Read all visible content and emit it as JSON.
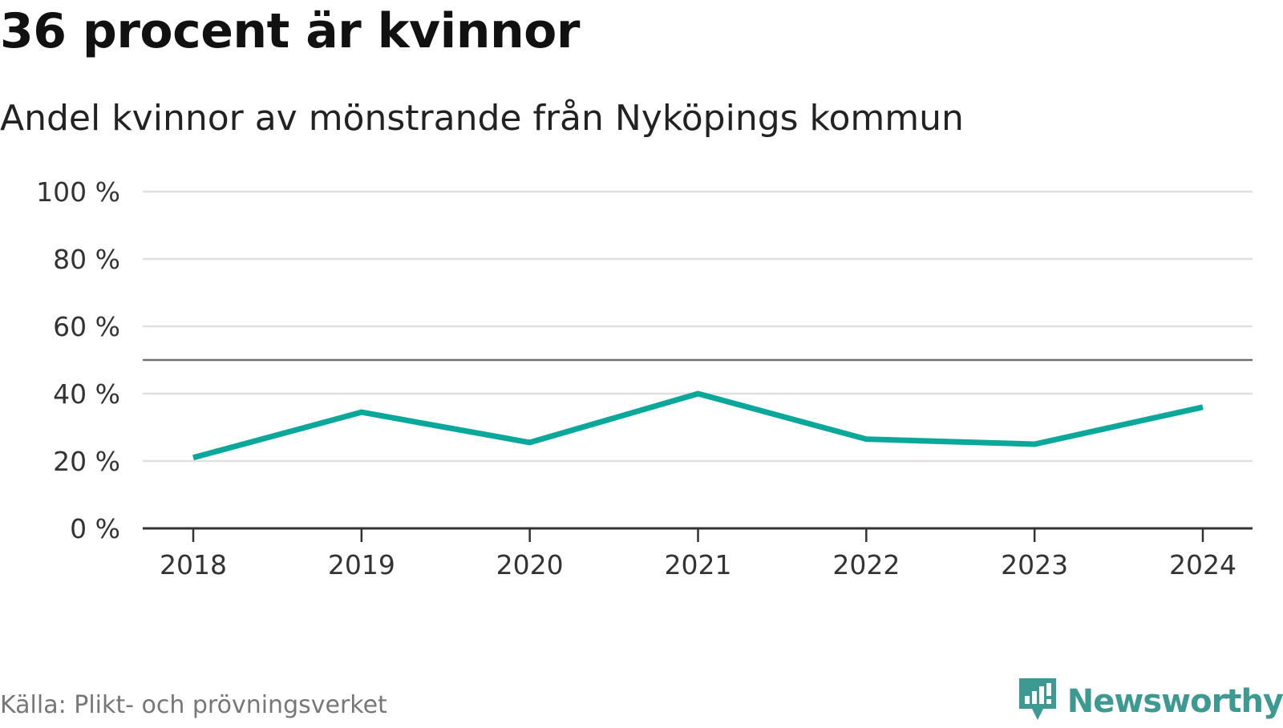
{
  "title": "36 procent är kvinnor",
  "subtitle": "Andel kvinnor av mönstrande från Nyköpings kommun",
  "source": "Källa: Plikt- och prövningsverket",
  "brand": {
    "name": "Newsworthy",
    "color": "#3c9a92",
    "icon": "newsworthy-logo-icon"
  },
  "chart_data": {
    "type": "line",
    "title": "36 procent är kvinnor",
    "subtitle": "Andel kvinnor av mönstrande från Nyköpings kommun",
    "xlabel": "",
    "ylabel": "",
    "x": [
      "2018",
      "2019",
      "2020",
      "2021",
      "2022",
      "2023",
      "2024"
    ],
    "series": [
      {
        "name": "Andel kvinnor",
        "values": [
          21,
          34.5,
          25.5,
          40,
          26.5,
          25,
          36
        ],
        "color": "#0aa89a"
      }
    ],
    "ylim": [
      0,
      100
    ],
    "yticks": [
      0,
      20,
      40,
      60,
      80,
      100
    ],
    "ytick_labels": [
      "0 %",
      "20 %",
      "40 %",
      "60 %",
      "80 %",
      "100 %"
    ],
    "reference_line": 50,
    "grid": true,
    "colors": {
      "grid": "#e0e0e0",
      "reference": "#707070",
      "axis": "#333333"
    }
  }
}
